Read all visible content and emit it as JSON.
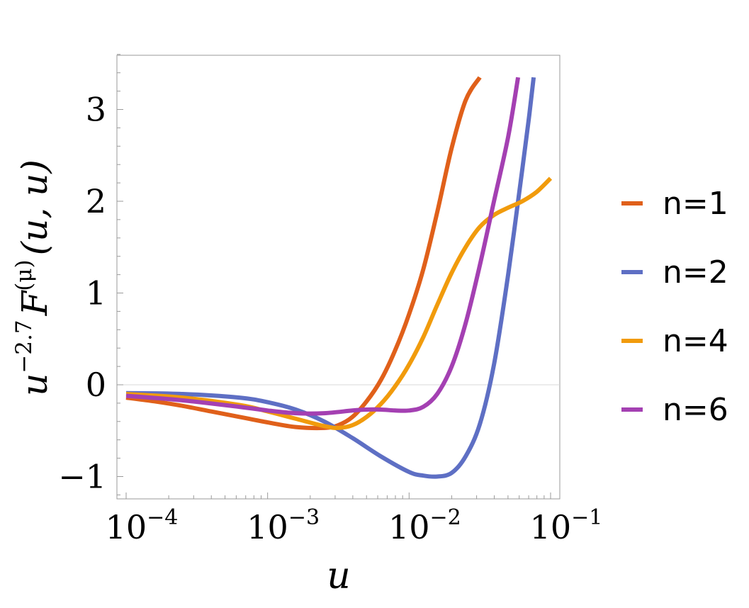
{
  "chart_data": {
    "type": "line",
    "title": "",
    "xlabel": "u",
    "ylabel": {
      "base": "u",
      "exponent": "−2.7",
      "func": "F",
      "func_sup": "(μ)",
      "args": "(u, u)"
    },
    "x_scale": "log",
    "xlim": [
      0.0001,
      0.1
    ],
    "ylim": [
      -1.25,
      3.6
    ],
    "x_ticks": [
      {
        "value": 0.0001,
        "base": "10",
        "exp": "−4"
      },
      {
        "value": 0.001,
        "base": "10",
        "exp": "−3"
      },
      {
        "value": 0.01,
        "base": "10",
        "exp": "−2"
      },
      {
        "value": 0.1,
        "base": "10",
        "exp": "−1"
      }
    ],
    "y_ticks": [
      {
        "value": -1,
        "label": "−1"
      },
      {
        "value": 0,
        "label": "0"
      },
      {
        "value": 1,
        "label": "1"
      },
      {
        "value": 2,
        "label": "2"
      },
      {
        "value": 3,
        "label": "3"
      }
    ],
    "grid": false,
    "zero_line": true,
    "legend_position": "right",
    "series": [
      {
        "name": "n=1",
        "color": "#E0601A",
        "points": [
          [
            0.0001,
            -0.14
          ],
          [
            0.000158,
            -0.18
          ],
          [
            0.000251,
            -0.23
          ],
          [
            0.000398,
            -0.29
          ],
          [
            0.000631,
            -0.35
          ],
          [
            0.001,
            -0.41
          ],
          [
            0.00158,
            -0.46
          ],
          [
            0.00251,
            -0.47
          ],
          [
            0.00316,
            -0.44
          ],
          [
            0.00398,
            -0.35
          ],
          [
            0.00501,
            -0.18
          ],
          [
            0.00631,
            0.05
          ],
          [
            0.00794,
            0.37
          ],
          [
            0.01,
            0.77
          ],
          [
            0.0126,
            1.26
          ],
          [
            0.0158,
            1.88
          ],
          [
            0.02,
            2.58
          ],
          [
            0.0251,
            3.1
          ],
          [
            0.0316,
            3.35
          ]
        ]
      },
      {
        "name": "n=2",
        "color": "#5E6FC4",
        "points": [
          [
            0.0001,
            -0.09
          ],
          [
            0.000251,
            -0.1
          ],
          [
            0.000631,
            -0.14
          ],
          [
            0.001,
            -0.19
          ],
          [
            0.00158,
            -0.27
          ],
          [
            0.00251,
            -0.4
          ],
          [
            0.00398,
            -0.58
          ],
          [
            0.00631,
            -0.78
          ],
          [
            0.01,
            -0.95
          ],
          [
            0.0126,
            -0.99
          ],
          [
            0.0158,
            -1.0
          ],
          [
            0.02,
            -0.96
          ],
          [
            0.0251,
            -0.78
          ],
          [
            0.0316,
            -0.43
          ],
          [
            0.0398,
            0.22
          ],
          [
            0.0501,
            1.2
          ],
          [
            0.0631,
            2.35
          ],
          [
            0.0708,
            2.95
          ],
          [
            0.0759,
            3.35
          ]
        ]
      },
      {
        "name": "n=4",
        "color": "#F19B0C",
        "points": [
          [
            0.0001,
            -0.1
          ],
          [
            0.000251,
            -0.14
          ],
          [
            0.000631,
            -0.22
          ],
          [
            0.001,
            -0.29
          ],
          [
            0.00158,
            -0.37
          ],
          [
            0.00251,
            -0.45
          ],
          [
            0.00316,
            -0.47
          ],
          [
            0.00398,
            -0.44
          ],
          [
            0.00501,
            -0.35
          ],
          [
            0.00631,
            -0.21
          ],
          [
            0.00794,
            -0.02
          ],
          [
            0.01,
            0.22
          ],
          [
            0.0126,
            0.52
          ],
          [
            0.0158,
            0.87
          ],
          [
            0.02,
            1.22
          ],
          [
            0.0251,
            1.5
          ],
          [
            0.0316,
            1.72
          ],
          [
            0.0398,
            1.85
          ],
          [
            0.0501,
            1.93
          ],
          [
            0.0631,
            2.0
          ],
          [
            0.0794,
            2.1
          ],
          [
            0.1,
            2.25
          ]
        ]
      },
      {
        "name": "n=6",
        "color": "#A440B2",
        "points": [
          [
            0.0001,
            -0.12
          ],
          [
            0.000251,
            -0.17
          ],
          [
            0.000631,
            -0.24
          ],
          [
            0.001,
            -0.28
          ],
          [
            0.00158,
            -0.31
          ],
          [
            0.00251,
            -0.31
          ],
          [
            0.00398,
            -0.28
          ],
          [
            0.00501,
            -0.27
          ],
          [
            0.00631,
            -0.27
          ],
          [
            0.00794,
            -0.28
          ],
          [
            0.01,
            -0.28
          ],
          [
            0.0126,
            -0.24
          ],
          [
            0.0158,
            -0.1
          ],
          [
            0.02,
            0.2
          ],
          [
            0.0251,
            0.67
          ],
          [
            0.0316,
            1.3
          ],
          [
            0.0398,
            2.0
          ],
          [
            0.0501,
            2.7
          ],
          [
            0.0589,
            3.35
          ]
        ]
      }
    ]
  }
}
